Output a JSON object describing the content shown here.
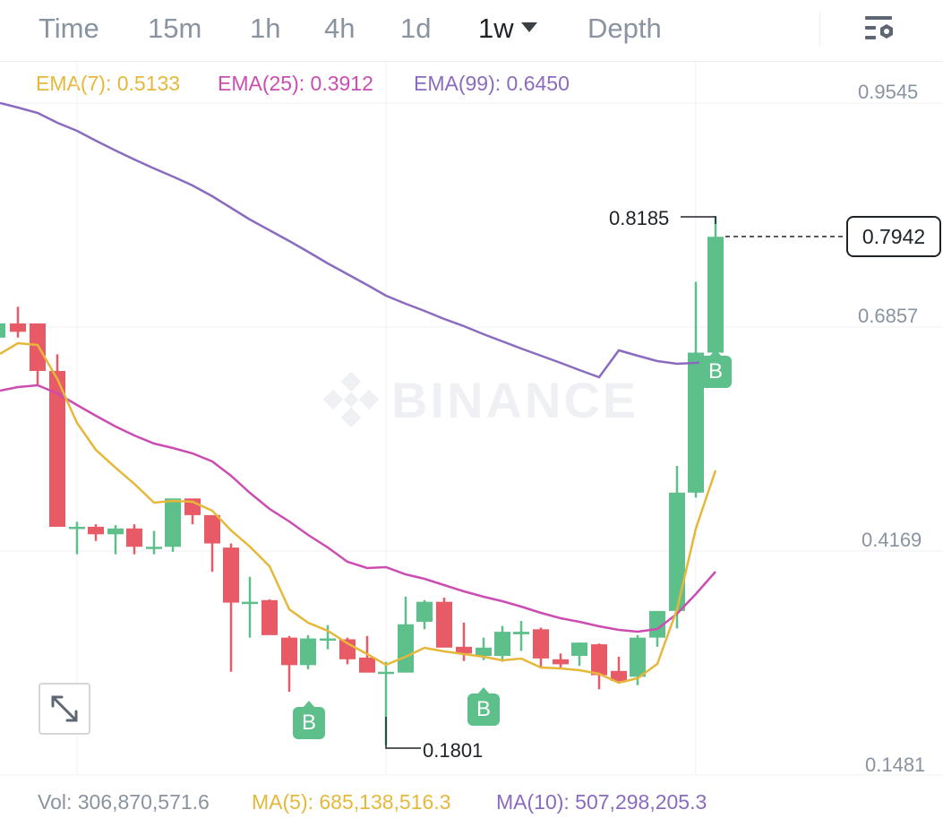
{
  "timeframes": [
    {
      "label": "Time",
      "active": false
    },
    {
      "label": "15m",
      "active": false
    },
    {
      "label": "1h",
      "active": false
    },
    {
      "label": "4h",
      "active": false
    },
    {
      "label": "1d",
      "active": false
    },
    {
      "label": "1w",
      "active": true
    },
    {
      "label": "Depth",
      "active": false
    }
  ],
  "ema": {
    "ema7": "EMA(7): 0.5133",
    "ema25": "EMA(25): 0.3912",
    "ema99": "EMA(99): 0.6450"
  },
  "colors": {
    "ema7": "#e6b83a",
    "ema25": "#cc4db2",
    "ema99": "#8a6bbf",
    "up": "#5dbf8a",
    "down": "#e85a66",
    "buy_marker": "#5dbf8a"
  },
  "watermark": "BINANCE",
  "price_axis": [
    "0.9545",
    "0.6857",
    "0.4169",
    "0.1481"
  ],
  "current_price": "0.7942",
  "high_label": "0.8185",
  "low_label": "0.1801",
  "buy_marker_label": "B",
  "volume": {
    "vol": "Vol: 306,870,571.6",
    "ma5": "MA(5): 685,138,516.3",
    "ma10": "MA(10): 507,298,205.3"
  },
  "icons": {
    "settings": "chart-settings-icon",
    "expand": "expand-arrows-icon",
    "watermark_logo": "binance-logo-icon"
  }
}
